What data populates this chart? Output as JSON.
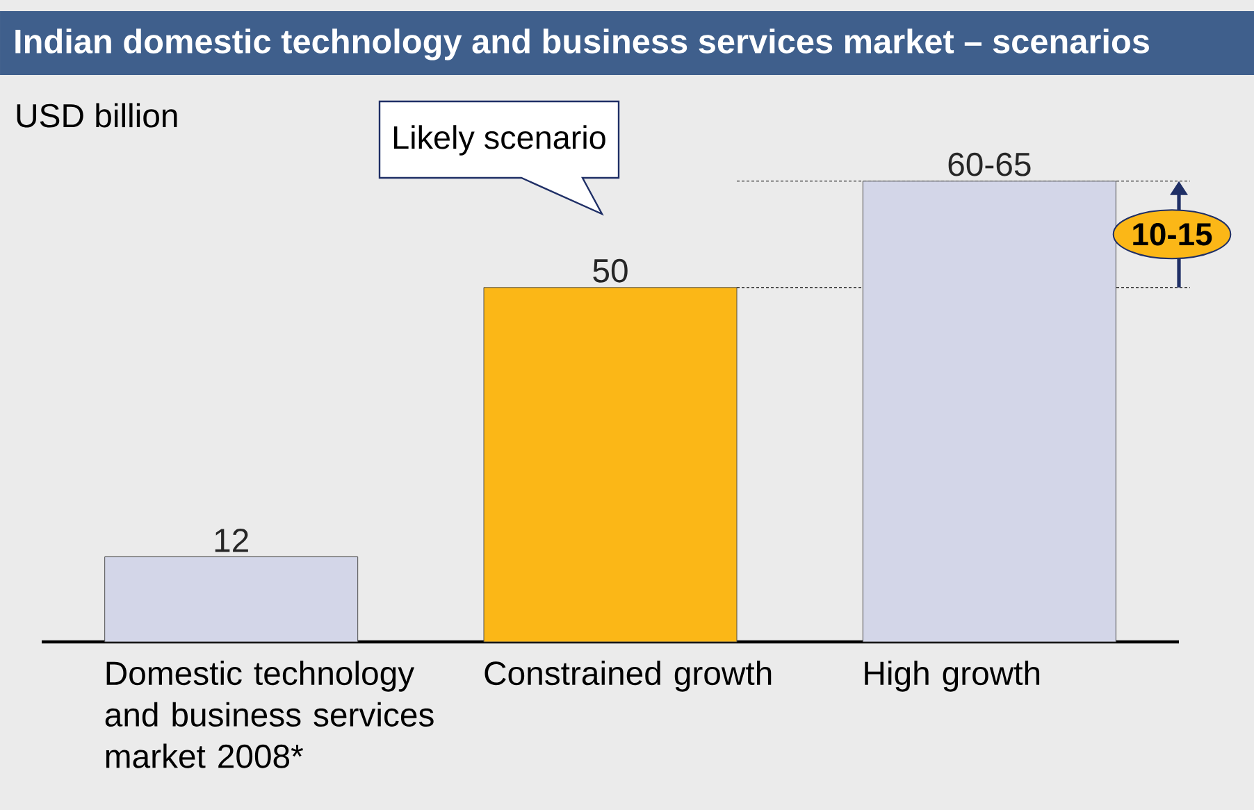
{
  "chart_data": {
    "type": "bar",
    "title": "Indian domestic technology and business services market – scenarios",
    "ylabel": "USD billion",
    "categories": [
      "Domestic technology and business services market 2008*",
      "Constrained growth",
      "High growth"
    ],
    "values": [
      12,
      50,
      65
    ],
    "value_labels": [
      "12",
      "50",
      "60-65"
    ],
    "colors": [
      "#d3d6e8",
      "#fbb717",
      "#d3d6e8"
    ],
    "ref_lines": [
      {
        "axis": "y",
        "value": 50,
        "line_style": "dashed"
      },
      {
        "axis": "y",
        "value": 65,
        "line_style": "dashed"
      }
    ],
    "annotations": [
      "Likely scenario",
      "10-15"
    ]
  }
}
